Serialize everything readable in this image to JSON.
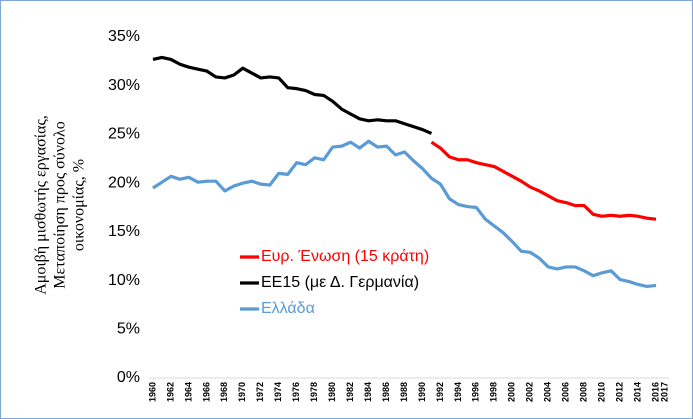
{
  "chart_data": {
    "type": "line",
    "ylabel": [
      "Αμοιβή μισθωτής εργασίας,",
      "Μεταποίηση προς σύνολο",
      "οικονομίας, %"
    ],
    "categories": [
      "1960",
      null,
      "1962",
      null,
      "1964",
      null,
      "1966",
      null,
      "1968",
      null,
      "1970",
      null,
      "1972",
      null,
      "1974",
      null,
      "1976",
      null,
      "1978",
      null,
      "1980",
      null,
      "1982",
      null,
      "1984",
      null,
      "1986",
      null,
      "1988",
      null,
      "1990",
      null,
      "1992",
      null,
      "1994",
      null,
      "1996",
      null,
      "1998",
      null,
      "2000",
      null,
      "2002",
      null,
      "2004",
      null,
      "2006",
      null,
      "2008",
      null,
      "2010",
      null,
      "2012",
      null,
      "2014",
      null,
      "2016",
      "2017"
    ],
    "series": [
      {
        "name": "Ευρ. Ένωση (15 κράτη)",
        "color": "#ff0000",
        "values": [
          null,
          null,
          null,
          null,
          null,
          null,
          null,
          null,
          null,
          null,
          null,
          null,
          null,
          null,
          null,
          null,
          null,
          null,
          null,
          null,
          null,
          null,
          null,
          null,
          null,
          null,
          null,
          null,
          null,
          null,
          null,
          24.2,
          23.6,
          22.7,
          22.4,
          22.4,
          22.1,
          21.9,
          21.7,
          21.2,
          20.7,
          20.2,
          19.6,
          19.2,
          18.7,
          18.2,
          18.0,
          17.7,
          17.7,
          16.8,
          16.6,
          16.7,
          16.6,
          16.7,
          16.6,
          16.4,
          16.3,
          null
        ]
      },
      {
        "name": "ΕΕ15 (με Δ. Γερμανία)",
        "color": "#000000",
        "values": [
          32.7,
          32.9,
          32.7,
          32.2,
          31.9,
          31.7,
          31.5,
          30.9,
          30.8,
          31.1,
          31.8,
          31.3,
          30.8,
          30.9,
          30.8,
          29.8,
          29.7,
          29.5,
          29.1,
          29.0,
          28.4,
          27.6,
          27.1,
          26.6,
          26.4,
          26.5,
          26.4,
          26.4,
          26.1,
          25.8,
          25.5,
          25.1,
          null,
          null,
          null,
          null,
          null,
          null,
          null,
          null,
          null,
          null,
          null,
          null,
          null,
          null,
          null,
          null,
          null,
          null,
          null,
          null,
          null,
          null,
          null,
          null,
          null,
          null
        ]
      },
      {
        "name": "Ελλάδα",
        "color": "#5b9bd5",
        "values": [
          19.5,
          20.1,
          20.7,
          20.4,
          20.6,
          20.1,
          20.2,
          20.2,
          19.2,
          19.7,
          20.0,
          20.2,
          19.9,
          19.8,
          21.0,
          20.9,
          22.1,
          21.9,
          22.6,
          22.4,
          23.7,
          23.8,
          24.2,
          23.6,
          24.3,
          23.7,
          23.8,
          22.9,
          23.2,
          22.3,
          21.5,
          20.5,
          19.9,
          18.4,
          17.8,
          17.6,
          17.5,
          16.3,
          15.6,
          14.9,
          14.0,
          13.0,
          12.9,
          12.3,
          11.4,
          11.2,
          11.4,
          11.4,
          11.0,
          10.5,
          10.8,
          11.0,
          10.1,
          9.9,
          9.6,
          9.4,
          9.5,
          null
        ]
      }
    ],
    "ylim": [
      0,
      35
    ],
    "yticks": [
      {
        "value": 0,
        "label": "0%"
      },
      {
        "value": 5,
        "label": "5%"
      },
      {
        "value": 10,
        "label": "10%"
      },
      {
        "value": 15,
        "label": "15%"
      },
      {
        "value": 20,
        "label": "20%"
      },
      {
        "value": 25,
        "label": "25%"
      },
      {
        "value": 30,
        "label": "30%"
      },
      {
        "value": 35,
        "label": "35%"
      }
    ],
    "grid": false,
    "legend": "inside"
  }
}
